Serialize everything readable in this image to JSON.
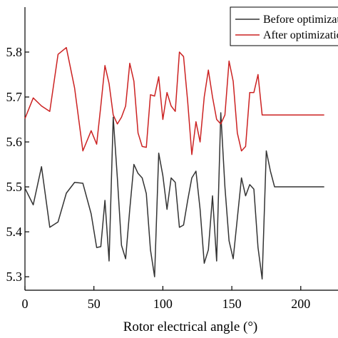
{
  "chart_data": {
    "type": "line",
    "xlabel": "Rotor electrical angle (°)",
    "ylabel": "",
    "xlim": [
      0,
      227
    ],
    "ylim": [
      5.27,
      5.9
    ],
    "x_ticks": [
      0,
      50,
      100,
      150,
      200
    ],
    "x_tick_labels": [
      "0",
      "50",
      "100",
      "150",
      "200"
    ],
    "y_ticks": [
      5.3,
      5.4,
      5.5,
      5.6,
      5.7,
      5.8
    ],
    "y_tick_labels": [
      "5.3",
      "5.4",
      "5.5",
      "5.6",
      "5.7",
      "5.8"
    ],
    "grid": false,
    "legend_position": "top-right",
    "series": [
      {
        "name": "Before optimization",
        "color": "#333333",
        "x": [
          0,
          6,
          12,
          18,
          24,
          30,
          36,
          42,
          48,
          52,
          55,
          58,
          61,
          64,
          67,
          70,
          73,
          76,
          79,
          82,
          85,
          88,
          91,
          94,
          97,
          100,
          103,
          106,
          109,
          112,
          115,
          118,
          121,
          124,
          127,
          130,
          133,
          136,
          139,
          142,
          145,
          148,
          151,
          154,
          157,
          160,
          163,
          166,
          169,
          172,
          175,
          178,
          181,
          184,
          187,
          190,
          193,
          196,
          199,
          202,
          205,
          208,
          211,
          214,
          217
        ],
        "values": [
          5.497,
          5.46,
          5.545,
          5.41,
          5.422,
          5.486,
          5.51,
          5.508,
          5.44,
          5.365,
          5.367,
          5.47,
          5.335,
          5.655,
          5.52,
          5.37,
          5.34,
          5.45,
          5.55,
          5.53,
          5.52,
          5.485,
          5.36,
          5.3,
          5.575,
          5.525,
          5.45,
          5.52,
          5.51,
          5.41,
          5.415,
          5.47,
          5.52,
          5.535,
          5.45,
          5.33,
          5.36,
          5.48,
          5.335,
          5.665,
          5.5,
          5.38,
          5.34,
          5.43,
          5.52,
          5.48,
          5.505,
          5.495,
          5.365,
          5.295,
          5.58,
          5.535,
          5.5,
          5.5,
          5.5,
          5.5,
          5.5,
          5.5,
          5.5,
          5.5,
          5.5,
          5.5,
          5.5,
          5.5,
          5.5
        ]
      },
      {
        "name": "After optimization",
        "color": "#cc2222",
        "x": [
          0,
          6,
          12,
          18,
          24,
          30,
          36,
          42,
          48,
          52,
          55,
          58,
          61,
          64,
          67,
          70,
          73,
          76,
          79,
          82,
          85,
          88,
          91,
          94,
          97,
          100,
          103,
          106,
          109,
          112,
          115,
          118,
          121,
          124,
          127,
          130,
          133,
          136,
          139,
          142,
          145,
          148,
          151,
          154,
          157,
          160,
          163,
          166,
          169,
          172,
          175,
          178,
          181,
          184,
          187,
          190,
          193,
          196,
          199,
          202,
          205,
          208,
          211,
          214,
          217
        ],
        "values": [
          5.652,
          5.698,
          5.68,
          5.668,
          5.795,
          5.81,
          5.72,
          5.58,
          5.625,
          5.595,
          5.68,
          5.77,
          5.73,
          5.66,
          5.64,
          5.655,
          5.68,
          5.775,
          5.735,
          5.62,
          5.59,
          5.588,
          5.705,
          5.702,
          5.745,
          5.65,
          5.71,
          5.68,
          5.668,
          5.8,
          5.79,
          5.69,
          5.572,
          5.645,
          5.6,
          5.7,
          5.76,
          5.7,
          5.65,
          5.64,
          5.66,
          5.78,
          5.735,
          5.62,
          5.58,
          5.59,
          5.71,
          5.71,
          5.75,
          5.66,
          5.66,
          5.66,
          5.66,
          5.66,
          5.66,
          5.66,
          5.66,
          5.66,
          5.66,
          5.66,
          5.66,
          5.66,
          5.66,
          5.66,
          5.66
        ]
      }
    ]
  }
}
